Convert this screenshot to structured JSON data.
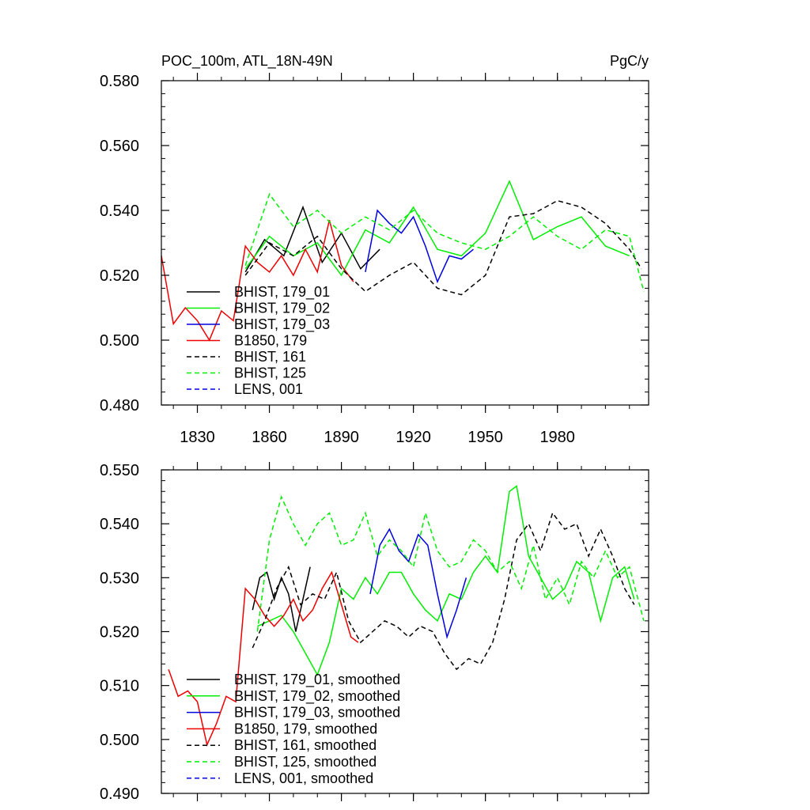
{
  "chart_data": [
    {
      "type": "line",
      "title_left": "POC_100m, ATL_18N-49N",
      "title_right": "PgC/y",
      "xlim": [
        1815,
        2018
      ],
      "ylim": [
        0.48,
        0.58
      ],
      "xticks": [
        1830,
        1860,
        1890,
        1920,
        1950,
        1980
      ],
      "xtick_labels": [
        "1830",
        "1860",
        "1890",
        "1920",
        "1950",
        "1980"
      ],
      "yticks": [
        0.48,
        0.5,
        0.52,
        0.54,
        0.56,
        0.58
      ],
      "ytick_labels": [
        "0.480",
        "0.500",
        "0.520",
        "0.540",
        "0.560",
        "0.580"
      ],
      "legend": {
        "position": "lower-left",
        "entries": [
          {
            "label": "BHIST, 179_01",
            "color": "#000000",
            "dash": "solid"
          },
          {
            "label": "BHIST, 179_02",
            "color": "#00ee00",
            "dash": "solid"
          },
          {
            "label": "BHIST, 179_03",
            "color": "#0000dd",
            "dash": "solid"
          },
          {
            "label": "B1850, 179",
            "color": "#ee0000",
            "dash": "solid"
          },
          {
            "label": "BHIST, 161",
            "color": "#000000",
            "dash": "dashed"
          },
          {
            "label": "BHIST, 125",
            "color": "#00ee00",
            "dash": "dashed"
          },
          {
            "label": "LENS, 001",
            "color": "#0000dd",
            "dash": "dashed"
          }
        ]
      },
      "series": [
        {
          "name": "BHIST, 179_01",
          "color": "#000000",
          "dash": "solid",
          "x": [
            1850,
            1858,
            1866,
            1874,
            1882,
            1890,
            1898,
            1906
          ],
          "y": [
            0.521,
            0.531,
            0.526,
            0.541,
            0.524,
            0.533,
            0.522,
            0.528
          ]
        },
        {
          "name": "BHIST, 179_02",
          "color": "#00ee00",
          "dash": "solid",
          "x": [
            1850,
            1860,
            1870,
            1880,
            1890,
            1900,
            1910,
            1920,
            1930,
            1940,
            1950,
            1960,
            1970,
            1980,
            1990,
            2000,
            2010
          ],
          "y": [
            0.522,
            0.532,
            0.526,
            0.53,
            0.52,
            0.534,
            0.53,
            0.541,
            0.528,
            0.526,
            0.533,
            0.549,
            0.531,
            0.535,
            0.538,
            0.529,
            0.526
          ]
        },
        {
          "name": "BHIST, 179_03",
          "color": "#0000dd",
          "dash": "solid",
          "x": [
            1900,
            1905,
            1910,
            1915,
            1920,
            1925,
            1930,
            1935,
            1940,
            1945
          ],
          "y": [
            0.521,
            0.54,
            0.536,
            0.533,
            0.538,
            0.529,
            0.518,
            0.526,
            0.525,
            0.528
          ]
        },
        {
          "name": "B1850, 179",
          "color": "#ee0000",
          "dash": "solid",
          "x": [
            1815,
            1820,
            1825,
            1830,
            1835,
            1840,
            1845,
            1850,
            1855,
            1860,
            1865,
            1870,
            1875,
            1880,
            1885,
            1890,
            1895
          ],
          "y": [
            0.526,
            0.505,
            0.51,
            0.506,
            0.5,
            0.509,
            0.506,
            0.529,
            0.524,
            0.521,
            0.526,
            0.52,
            0.528,
            0.521,
            0.537,
            0.523,
            0.518
          ]
        },
        {
          "name": "BHIST, 161",
          "color": "#000000",
          "dash": "dashed",
          "x": [
            1850,
            1860,
            1870,
            1880,
            1890,
            1900,
            1910,
            1920,
            1930,
            1940,
            1950,
            1960,
            1970,
            1980,
            1990,
            2000,
            2010,
            2015
          ],
          "y": [
            0.52,
            0.53,
            0.526,
            0.532,
            0.522,
            0.515,
            0.52,
            0.524,
            0.516,
            0.514,
            0.52,
            0.538,
            0.539,
            0.543,
            0.541,
            0.536,
            0.528,
            0.522
          ]
        },
        {
          "name": "BHIST, 125",
          "color": "#00ee00",
          "dash": "dashed",
          "x": [
            1850,
            1860,
            1870,
            1880,
            1890,
            1900,
            1910,
            1920,
            1930,
            1940,
            1950,
            1960,
            1970,
            1980,
            1990,
            2000,
            2010,
            2016
          ],
          "y": [
            0.523,
            0.545,
            0.535,
            0.54,
            0.533,
            0.538,
            0.534,
            0.54,
            0.533,
            0.53,
            0.528,
            0.532,
            0.538,
            0.532,
            0.528,
            0.534,
            0.532,
            0.515
          ]
        },
        {
          "name": "LENS, 001",
          "color": "#0000dd",
          "dash": "dashed",
          "x": [],
          "y": []
        }
      ]
    },
    {
      "type": "line",
      "xlim": [
        1815,
        2018
      ],
      "ylim": [
        0.49,
        0.55
      ],
      "xticks": [
        1830,
        1860,
        1890,
        1920,
        1950,
        1980
      ],
      "yticks": [
        0.49,
        0.5,
        0.51,
        0.52,
        0.53,
        0.54,
        0.55
      ],
      "ytick_labels": [
        "0.490",
        "0.500",
        "0.510",
        "0.520",
        "0.530",
        "0.540",
        "0.550"
      ],
      "legend": {
        "position": "lower-left",
        "entries": [
          {
            "label": "BHIST, 179_01, smoothed",
            "color": "#000000",
            "dash": "solid"
          },
          {
            "label": "BHIST, 179_02, smoothed",
            "color": "#00ee00",
            "dash": "solid"
          },
          {
            "label": "BHIST, 179_03, smoothed",
            "color": "#0000dd",
            "dash": "solid"
          },
          {
            "label": "B1850, 179, smoothed",
            "color": "#ee0000",
            "dash": "solid"
          },
          {
            "label": "BHIST, 161, smoothed",
            "color": "#000000",
            "dash": "dashed"
          },
          {
            "label": "BHIST, 125, smoothed",
            "color": "#00ee00",
            "dash": "dashed"
          },
          {
            "label": "LENS, 001, smoothed",
            "color": "#0000dd",
            "dash": "dashed"
          }
        ]
      },
      "series": [
        {
          "name": "BHIST, 179_01, smoothed",
          "color": "#000000",
          "dash": "solid",
          "x": [
            1853,
            1856,
            1859,
            1862,
            1865,
            1868,
            1871,
            1874,
            1877
          ],
          "y": [
            0.524,
            0.53,
            0.531,
            0.526,
            0.53,
            0.527,
            0.52,
            0.526,
            0.532
          ]
        },
        {
          "name": "BHIST, 179_02, smoothed",
          "color": "#00ee00",
          "dash": "solid",
          "x": [
            1855,
            1860,
            1865,
            1870,
            1875,
            1880,
            1885,
            1890,
            1895,
            1900,
            1905,
            1910,
            1915,
            1920,
            1925,
            1930,
            1935,
            1940,
            1945,
            1950,
            1955,
            1960,
            1963,
            1968,
            1973,
            1978,
            1983,
            1988,
            1993,
            1998,
            2003,
            2008,
            2012
          ],
          "y": [
            0.521,
            0.522,
            0.523,
            0.52,
            0.516,
            0.512,
            0.518,
            0.528,
            0.526,
            0.53,
            0.527,
            0.531,
            0.531,
            0.527,
            0.524,
            0.522,
            0.527,
            0.526,
            0.531,
            0.534,
            0.531,
            0.546,
            0.547,
            0.534,
            0.53,
            0.526,
            0.528,
            0.533,
            0.531,
            0.522,
            0.53,
            0.532,
            0.526
          ]
        },
        {
          "name": "BHIST, 179_03, smoothed",
          "color": "#0000dd",
          "dash": "solid",
          "x": [
            1902,
            1906,
            1910,
            1914,
            1918,
            1922,
            1926,
            1930,
            1934,
            1938,
            1942
          ],
          "y": [
            0.527,
            0.536,
            0.539,
            0.535,
            0.533,
            0.538,
            0.536,
            0.527,
            0.519,
            0.524,
            0.53
          ]
        },
        {
          "name": "B1850, 179, smoothed",
          "color": "#ee0000",
          "dash": "solid",
          "x": [
            1818,
            1822,
            1826,
            1830,
            1834,
            1838,
            1842,
            1846,
            1850,
            1854,
            1858,
            1862,
            1866,
            1870,
            1874,
            1878,
            1882,
            1886,
            1890,
            1894,
            1897
          ],
          "y": [
            0.513,
            0.508,
            0.509,
            0.507,
            0.499,
            0.503,
            0.508,
            0.507,
            0.528,
            0.526,
            0.523,
            0.521,
            0.523,
            0.526,
            0.522,
            0.524,
            0.528,
            0.531,
            0.525,
            0.519,
            0.518
          ]
        },
        {
          "name": "BHIST, 161, smoothed",
          "color": "#000000",
          "dash": "dashed",
          "x": [
            1853,
            1858,
            1863,
            1868,
            1873,
            1878,
            1883,
            1888,
            1893,
            1898,
            1903,
            1908,
            1913,
            1918,
            1923,
            1928,
            1933,
            1938,
            1943,
            1948,
            1953,
            1958,
            1963,
            1968,
            1973,
            1978,
            1983,
            1988,
            1993,
            1998,
            2003,
            2008,
            2012
          ],
          "y": [
            0.517,
            0.522,
            0.528,
            0.532,
            0.525,
            0.527,
            0.526,
            0.531,
            0.522,
            0.518,
            0.52,
            0.522,
            0.521,
            0.519,
            0.521,
            0.52,
            0.516,
            0.513,
            0.515,
            0.514,
            0.518,
            0.526,
            0.537,
            0.54,
            0.535,
            0.542,
            0.539,
            0.54,
            0.534,
            0.539,
            0.534,
            0.528,
            0.525
          ]
        },
        {
          "name": "BHIST, 125, smoothed",
          "color": "#00ee00",
          "dash": "dashed",
          "x": [
            1855,
            1860,
            1865,
            1870,
            1875,
            1880,
            1885,
            1890,
            1895,
            1900,
            1905,
            1910,
            1915,
            1920,
            1925,
            1930,
            1935,
            1940,
            1945,
            1950,
            1955,
            1960,
            1965,
            1970,
            1975,
            1980,
            1985,
            1990,
            1995,
            2000,
            2005,
            2010,
            2016
          ],
          "y": [
            0.52,
            0.537,
            0.545,
            0.54,
            0.536,
            0.54,
            0.542,
            0.536,
            0.537,
            0.542,
            0.534,
            0.537,
            0.535,
            0.532,
            0.542,
            0.535,
            0.532,
            0.533,
            0.537,
            0.535,
            0.531,
            0.533,
            0.528,
            0.536,
            0.526,
            0.53,
            0.525,
            0.533,
            0.53,
            0.535,
            0.53,
            0.532,
            0.522
          ]
        },
        {
          "name": "LENS, 001, smoothed",
          "color": "#0000dd",
          "dash": "dashed",
          "x": [],
          "y": []
        }
      ]
    }
  ]
}
